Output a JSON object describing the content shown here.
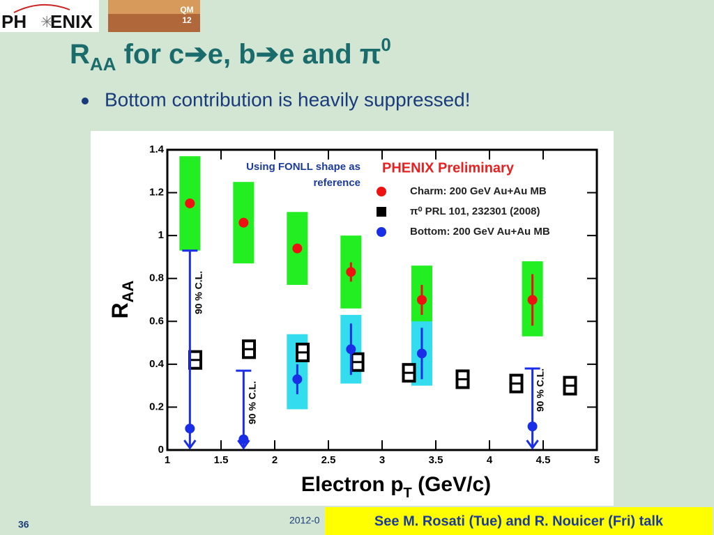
{
  "slide": {
    "logo": "PH",
    "logo2": "ENIX",
    "badge": "QM",
    "badge2": "12",
    "title": {
      "main": "R",
      "sub": "AA",
      "rest": " for c➔e, b➔e and π",
      "sup": "0"
    },
    "bullet": "Bottom contribution is heavily suppressed!",
    "page": "36",
    "date": "2012-0",
    "note": "See M. Rosati (Tue) and R. Nouicer (Fri) talk"
  },
  "chart_data": {
    "type": "scatter",
    "title": "PHENIX Preliminary",
    "note": [
      "Using FONLL shape as",
      "reference"
    ],
    "x_label": {
      "main": "Electron p",
      "sub": "T",
      "rest": " (GeV/c)"
    },
    "y_label": {
      "main": "R",
      "sub": "AA"
    },
    "xlim": [
      1,
      5
    ],
    "xticks": [
      1,
      1.5,
      2,
      2.5,
      3,
      3.5,
      4,
      4.5,
      5
    ],
    "ylim": [
      0,
      1.4
    ],
    "yticks": [
      0,
      0.2,
      0.4,
      0.6,
      0.8,
      1,
      1.2,
      1.4
    ],
    "annotations": [
      "90 % C.L.",
      "90 % C.L.",
      "90 % C.L."
    ],
    "series": [
      {
        "name": "Charm: 200 GeV Au+Au MB",
        "color": "#ee1111",
        "marker": "circle",
        "box_color": "#22ee22",
        "x": [
          1.21,
          1.71,
          2.21,
          2.71,
          3.37,
          4.4
        ],
        "values": [
          1.15,
          1.06,
          0.94,
          0.83,
          0.7,
          0.7
        ],
        "errors": [
          0.02,
          0.02,
          0.02,
          0.045,
          0.07,
          0.12
        ],
        "sys_low": [
          0.93,
          0.87,
          0.77,
          0.66,
          0.46,
          0.53
        ],
        "sys_high": [
          1.37,
          1.25,
          1.11,
          1.0,
          0.86,
          0.88
        ]
      },
      {
        "name": "π⁰ PRL 101, 232301 (2008)",
        "color": "#000000",
        "marker": "square",
        "x": [
          1.26,
          1.76,
          2.26,
          2.77,
          3.25,
          3.75,
          4.25,
          4.75
        ],
        "values": [
          0.42,
          0.47,
          0.455,
          0.41,
          0.36,
          0.33,
          0.31,
          0.3
        ]
      },
      {
        "name": "Bottom: 200 GeV Au+Au MB",
        "color": "#1a2ee8",
        "marker": "circle",
        "box_color": "#33ddee",
        "x": [
          1.21,
          1.71,
          2.21,
          2.71,
          3.37,
          4.4
        ],
        "values": [
          0.1,
          0.05,
          0.33,
          0.47,
          0.45,
          0.11
        ],
        "errors": [
          null,
          null,
          0.07,
          0.12,
          0.12,
          null
        ],
        "sys_low": [
          null,
          null,
          0.19,
          0.31,
          0.3,
          null
        ],
        "sys_high": [
          null,
          null,
          0.54,
          0.63,
          0.6,
          null
        ],
        "upper_limits": [
          0.93,
          0.37,
          null,
          null,
          null,
          0.38
        ]
      }
    ]
  }
}
